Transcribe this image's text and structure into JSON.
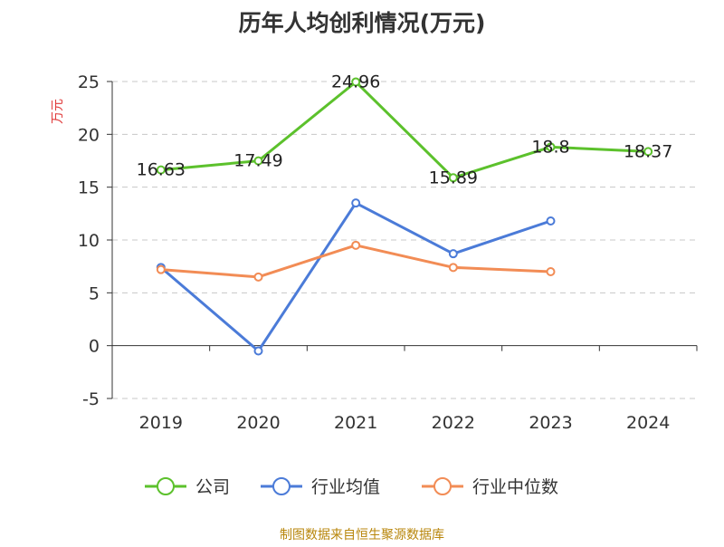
{
  "chart_data": {
    "type": "line",
    "title": "历年人均创利情况(万元)",
    "ylabel": "万元",
    "xlabel": "",
    "ylim": [
      -5,
      25
    ],
    "yticks": [
      -5,
      0,
      5,
      10,
      15,
      20,
      25
    ],
    "categories": [
      "2019",
      "2020",
      "2021",
      "2022",
      "2023",
      "2024"
    ],
    "grid": true,
    "legend_position": "bottom",
    "series": [
      {
        "name": "公司",
        "color": "#5cc12c",
        "values": [
          16.63,
          17.49,
          24.96,
          15.89,
          18.8,
          18.37
        ],
        "labels": [
          "16.63",
          "17.49",
          "24.96",
          "15.89",
          "18.8",
          "18.37"
        ]
      },
      {
        "name": "行业均值",
        "color": "#4b7bd8",
        "values": [
          7.4,
          -0.5,
          13.5,
          8.7,
          11.8,
          null
        ],
        "labels": null
      },
      {
        "name": "行业中位数",
        "color": "#f28c55",
        "values": [
          7.2,
          6.5,
          9.5,
          7.4,
          7.0,
          null
        ],
        "labels": null
      }
    ]
  },
  "source": "制图数据来自恒生聚源数据库"
}
